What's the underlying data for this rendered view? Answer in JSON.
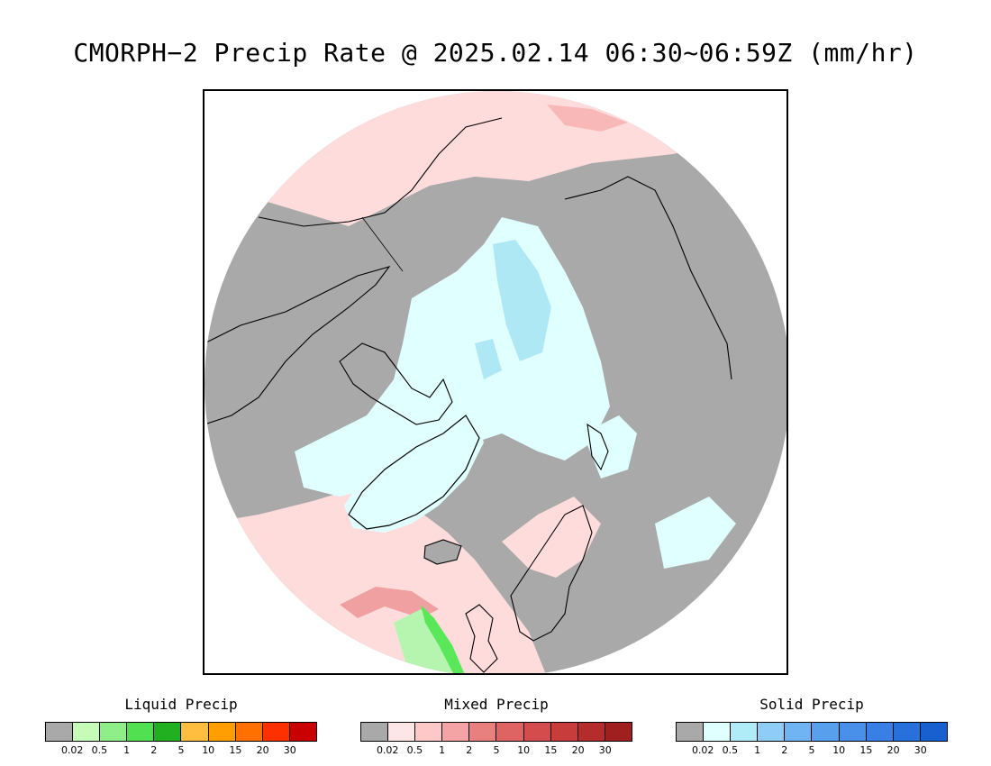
{
  "title": "CMORPH−2 Precip Rate @ 2025.02.14 06:30~06:59Z (mm/hr)",
  "map": {
    "projection": "north-polar-stereographic",
    "colors": {
      "no_precip": "#a9a9a9",
      "ocean_light_mixed": "#ffdcdc",
      "snow_light": "#e0ffff",
      "snow_moderate": "#aee8f5",
      "liquid_light": "#b6f5b0",
      "liquid_moderate": "#5ae85a",
      "mixed_moderate": "#f0a0a0",
      "coastline": "#000000"
    }
  },
  "legends": [
    {
      "title": "Liquid Precip",
      "colors": [
        "#a9a9a9",
        "#c7fcb8",
        "#90ee88",
        "#50e050",
        "#20b020",
        "#ffbe40",
        "#ff9e00",
        "#ff7000",
        "#ff3000",
        "#c80000"
      ],
      "ticks": [
        "0.02",
        "0.5",
        "1",
        "2",
        "5",
        "10",
        "15",
        "20",
        "30"
      ]
    },
    {
      "title": "Mixed Precip",
      "colors": [
        "#a9a9a9",
        "#ffe6e6",
        "#ffc8c8",
        "#f4a4a4",
        "#e88080",
        "#de6464",
        "#d44c4c",
        "#c83c3c",
        "#b42c2c",
        "#a02020"
      ],
      "ticks": [
        "0.02",
        "0.5",
        "1",
        "2",
        "5",
        "10",
        "15",
        "20",
        "30"
      ]
    },
    {
      "title": "Solid Precip",
      "colors": [
        "#a9a9a9",
        "#e0ffff",
        "#b0ecf8",
        "#90ccf8",
        "#70b4f4",
        "#58a0ee",
        "#4890ea",
        "#3880e6",
        "#2870dc",
        "#1860d0"
      ],
      "ticks": [
        "0.02",
        "0.5",
        "1",
        "2",
        "5",
        "10",
        "15",
        "20",
        "30"
      ]
    }
  ]
}
